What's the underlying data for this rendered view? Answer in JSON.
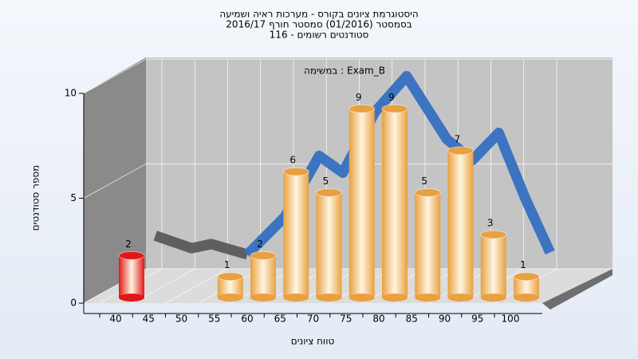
{
  "chart_data": {
    "type": "bar3d",
    "title": [
      "היסטוגרמת ציונים בקורס - מערכות ראיה ושמיעה",
      "בסמסטר  (01/2016)  סמסטר חורף 2016/17",
      "סטודנטים רשומים - 116"
    ],
    "annotation": "במשימה : Exam_B",
    "x_label": "טווח ציונים",
    "y_label": "מספר סטודנטים",
    "categories": [
      40,
      45,
      50,
      55,
      60,
      65,
      70,
      75,
      80,
      85,
      90,
      95,
      100
    ],
    "values": [
      2,
      null,
      null,
      1,
      2,
      6,
      5,
      9,
      9,
      5,
      7,
      3,
      1
    ],
    "colors": [
      "#e01818",
      "#e8a040",
      "#e8a040",
      "#e8a040",
      "#e8a040",
      "#e8a040",
      "#e8a040",
      "#e8a040",
      "#e8a040",
      "#e8a040",
      "#e8a040",
      "#e8a040",
      "#e8a040"
    ],
    "curves": [
      {
        "color": "#5a5a5a",
        "x": [
          41.3,
          46.8,
          49.8,
          55.3
        ],
        "values": [
          2.4,
          1.8,
          2.0,
          1.5
        ]
      },
      {
        "color": "#3570c2",
        "x": [
          55.3,
          61,
          66.2,
          69.8,
          74.7,
          79.5,
          85.6,
          89.5,
          93.5,
          97.5,
          101.3
        ],
        "values": [
          1.5,
          3.3,
          6.2,
          5.4,
          8.3,
          10,
          7.0,
          6.0,
          7.3,
          4.2,
          1.6
        ]
      }
    ],
    "xlim": [
      40,
      100
    ],
    "ylim": [
      0,
      10
    ],
    "yticks": [
      0,
      5,
      10
    ],
    "grid": true
  }
}
